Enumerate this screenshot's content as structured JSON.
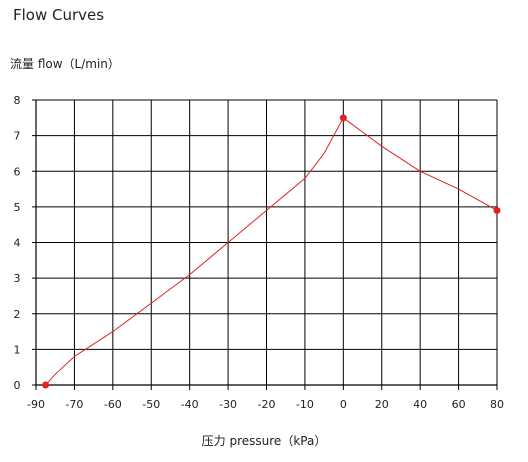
{
  "chart_data": {
    "type": "line",
    "title": "Flow Curves",
    "ylabel": "流量 flow（L/min）",
    "xlabel": "压力 pressure（kPa）",
    "x_ticks": [
      "-90",
      "-70",
      "-60",
      "-50",
      "-40",
      "-30",
      "-20",
      "-10",
      "0",
      "20",
      "40",
      "60",
      "80"
    ],
    "y_ticks": [
      "0",
      "1",
      "2",
      "3",
      "4",
      "5",
      "6",
      "7",
      "8"
    ],
    "ylim": [
      0,
      8
    ],
    "grid": true,
    "series": [
      {
        "points": [
          {
            "x": -85,
            "y": 0
          },
          {
            "x": -80,
            "y": 0.3
          },
          {
            "x": -70,
            "y": 0.8
          },
          {
            "x": -60,
            "y": 1.5
          },
          {
            "x": -50,
            "y": 2.3
          },
          {
            "x": -40,
            "y": 3.1
          },
          {
            "x": -30,
            "y": 4.0
          },
          {
            "x": -20,
            "y": 4.9
          },
          {
            "x": -10,
            "y": 5.8
          },
          {
            "x": -5,
            "y": 6.5
          },
          {
            "x": 0,
            "y": 7.5
          },
          {
            "x": 20,
            "y": 6.7
          },
          {
            "x": 40,
            "y": 6.0
          },
          {
            "x": 60,
            "y": 5.5
          },
          {
            "x": 80,
            "y": 4.9
          }
        ],
        "markers": [
          {
            "x": -85,
            "y": 0
          },
          {
            "x": 0,
            "y": 7.5
          },
          {
            "x": 80,
            "y": 4.9
          }
        ],
        "color": "#dd2222"
      }
    ]
  }
}
